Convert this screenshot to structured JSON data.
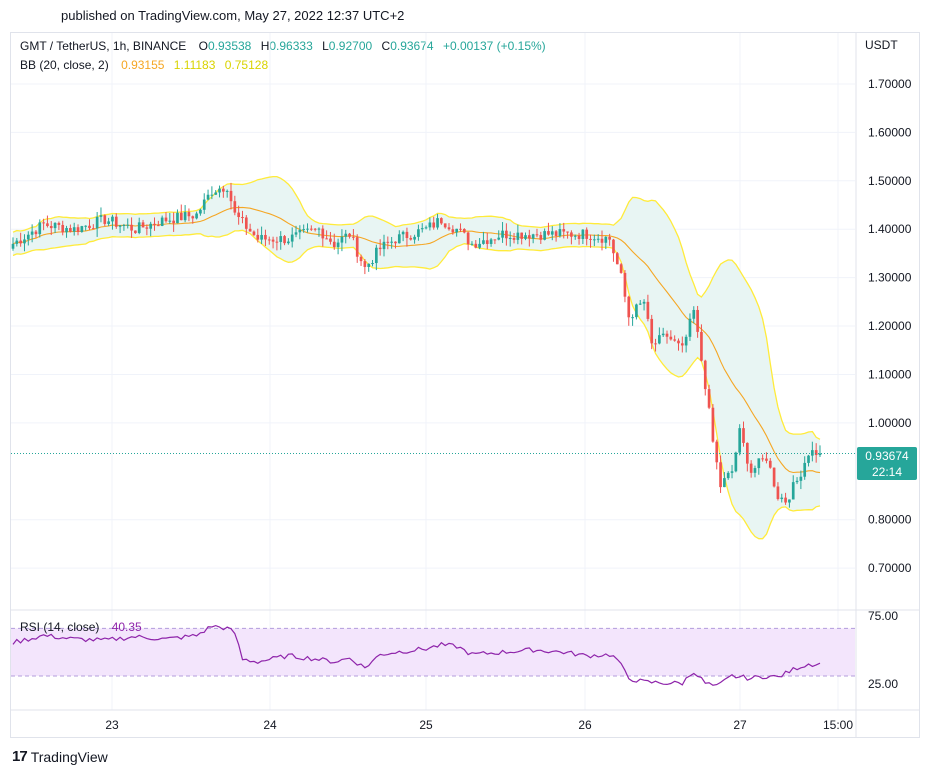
{
  "published": "published on TradingView.com, May 27, 2022 12:37 UTC+2",
  "header": {
    "symbol": "GMT / TetherUS, 1h, BINANCE",
    "open_label": "O",
    "open": "0.93538",
    "high_label": "H",
    "high": "0.96333",
    "low_label": "L",
    "low": "0.92700",
    "close_label": "C",
    "close": "0.93674",
    "change": "+0.00137 (+0.15%)"
  },
  "bb": {
    "label": "BB (20, close, 2)",
    "basis": "0.93155",
    "upper": "1.11183",
    "lower": "0.75128"
  },
  "rsi": {
    "label": "RSI (14, close)",
    "value": "40.35"
  },
  "currency": "USDT",
  "price_badge": {
    "price": "0.93674",
    "countdown": "22:14"
  },
  "footer": {
    "brand": "TradingView"
  },
  "colors": {
    "up": "#26a69a",
    "down": "#ef5350",
    "bb_basis": "#f5a623",
    "bb_band": "#ffeb3b",
    "bb_fill": "#e8f5f3",
    "rsi_line": "#8e24aa",
    "rsi_band": "#f3e5fc"
  },
  "chart_data": {
    "type": "candlestick",
    "price_axis": {
      "ticks": [
        "1.70000",
        "1.60000",
        "1.50000",
        "1.40000",
        "1.30000",
        "1.20000",
        "1.10000",
        "1.00000",
        "0.80000",
        "0.70000"
      ],
      "ylim": [
        0.64,
        1.78
      ]
    },
    "time_axis": {
      "ticks": [
        "23",
        "24",
        "25",
        "26",
        "27",
        "15:00"
      ]
    },
    "rsi_axis": {
      "ticks": [
        "75.00",
        "25.00"
      ],
      "upper": 70,
      "lower": 30
    },
    "last_price": 0.93674,
    "anchors": {
      "close": [
        [
          0,
          1.37
        ],
        [
          8,
          1.41
        ],
        [
          16,
          1.4
        ],
        [
          24,
          1.42
        ],
        [
          32,
          1.4
        ],
        [
          40,
          1.42
        ],
        [
          48,
          1.43
        ],
        [
          52,
          1.48
        ],
        [
          56,
          1.49
        ],
        [
          58,
          1.43
        ],
        [
          64,
          1.38
        ],
        [
          72,
          1.38
        ],
        [
          80,
          1.4
        ],
        [
          84,
          1.37
        ],
        [
          88,
          1.39
        ],
        [
          92,
          1.32
        ],
        [
          96,
          1.36
        ],
        [
          100,
          1.38
        ],
        [
          108,
          1.4
        ],
        [
          112,
          1.42
        ],
        [
          116,
          1.4
        ],
        [
          120,
          1.37
        ],
        [
          128,
          1.39
        ],
        [
          136,
          1.39
        ],
        [
          144,
          1.39
        ],
        [
          150,
          1.39
        ],
        [
          156,
          1.38
        ],
        [
          159,
          1.3
        ],
        [
          161,
          1.22
        ],
        [
          165,
          1.25
        ],
        [
          167,
          1.16
        ],
        [
          171,
          1.18
        ],
        [
          175,
          1.15
        ],
        [
          178,
          1.23
        ],
        [
          181,
          1.08
        ],
        [
          183,
          0.96
        ],
        [
          185,
          0.87
        ],
        [
          188,
          0.9
        ],
        [
          190,
          0.98
        ],
        [
          193,
          0.9
        ],
        [
          197,
          0.93
        ],
        [
          200,
          0.85
        ],
        [
          202,
          0.84
        ],
        [
          205,
          0.88
        ],
        [
          208,
          0.94
        ],
        [
          211,
          0.94
        ]
      ],
      "rsi": [
        [
          0,
          58
        ],
        [
          8,
          64
        ],
        [
          16,
          61
        ],
        [
          24,
          60
        ],
        [
          32,
          63
        ],
        [
          40,
          61
        ],
        [
          48,
          64
        ],
        [
          52,
          72
        ],
        [
          56,
          70
        ],
        [
          58,
          66
        ],
        [
          60,
          44
        ],
        [
          64,
          42
        ],
        [
          72,
          47
        ],
        [
          80,
          44
        ],
        [
          84,
          42
        ],
        [
          88,
          45
        ],
        [
          92,
          37
        ],
        [
          96,
          48
        ],
        [
          100,
          50
        ],
        [
          108,
          53
        ],
        [
          112,
          56
        ],
        [
          116,
          55
        ],
        [
          120,
          48
        ],
        [
          128,
          50
        ],
        [
          136,
          52
        ],
        [
          144,
          50
        ],
        [
          150,
          47
        ],
        [
          156,
          48
        ],
        [
          158,
          44
        ],
        [
          161,
          28
        ],
        [
          165,
          25
        ],
        [
          171,
          24
        ],
        [
          175,
          24
        ],
        [
          178,
          34
        ],
        [
          181,
          24
        ],
        [
          184,
          21
        ],
        [
          188,
          30
        ],
        [
          193,
          28
        ],
        [
          197,
          30
        ],
        [
          200,
          29
        ],
        [
          205,
          37
        ],
        [
          208,
          40
        ],
        [
          211,
          40
        ]
      ]
    }
  }
}
